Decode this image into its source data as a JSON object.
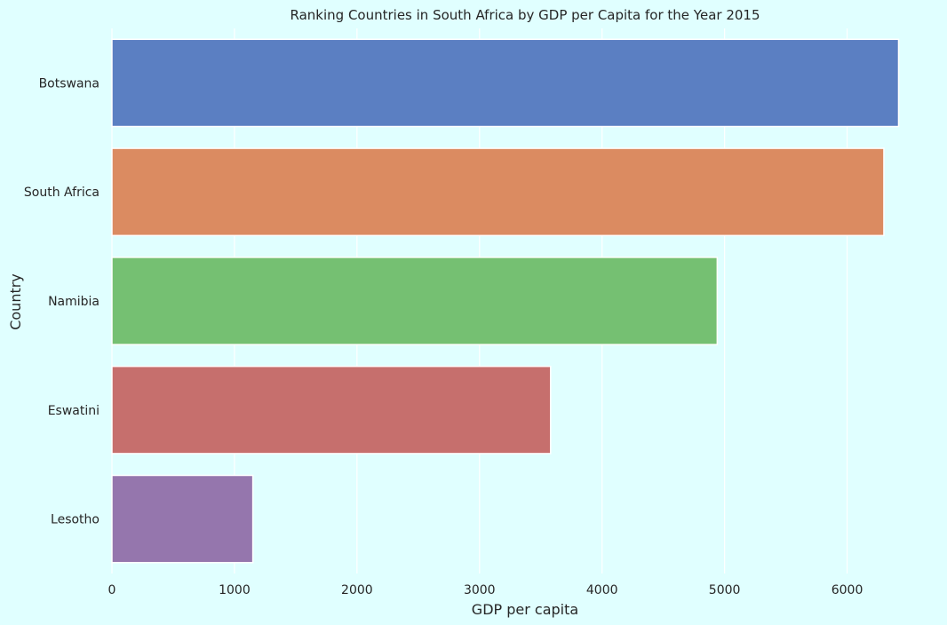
{
  "chart_data": {
    "type": "bar",
    "orientation": "horizontal",
    "title": "Ranking Countries in South Africa by GDP per Capita for the Year 2015",
    "xlabel": "GDP per capita",
    "ylabel": "Country",
    "categories": [
      "Botswana",
      "South Africa",
      "Namibia",
      "Eswatini",
      "Lesotho"
    ],
    "values": [
      6420,
      6300,
      4940,
      3580,
      1150
    ],
    "colors": [
      "#5b7fc2",
      "#db8b61",
      "#75c072",
      "#c66f6d",
      "#9576ad"
    ],
    "xlim": [
      0,
      6750
    ],
    "xticks": [
      0,
      1000,
      2000,
      3000,
      4000,
      5000,
      6000
    ],
    "grid": true,
    "background": "#e0ffff"
  }
}
